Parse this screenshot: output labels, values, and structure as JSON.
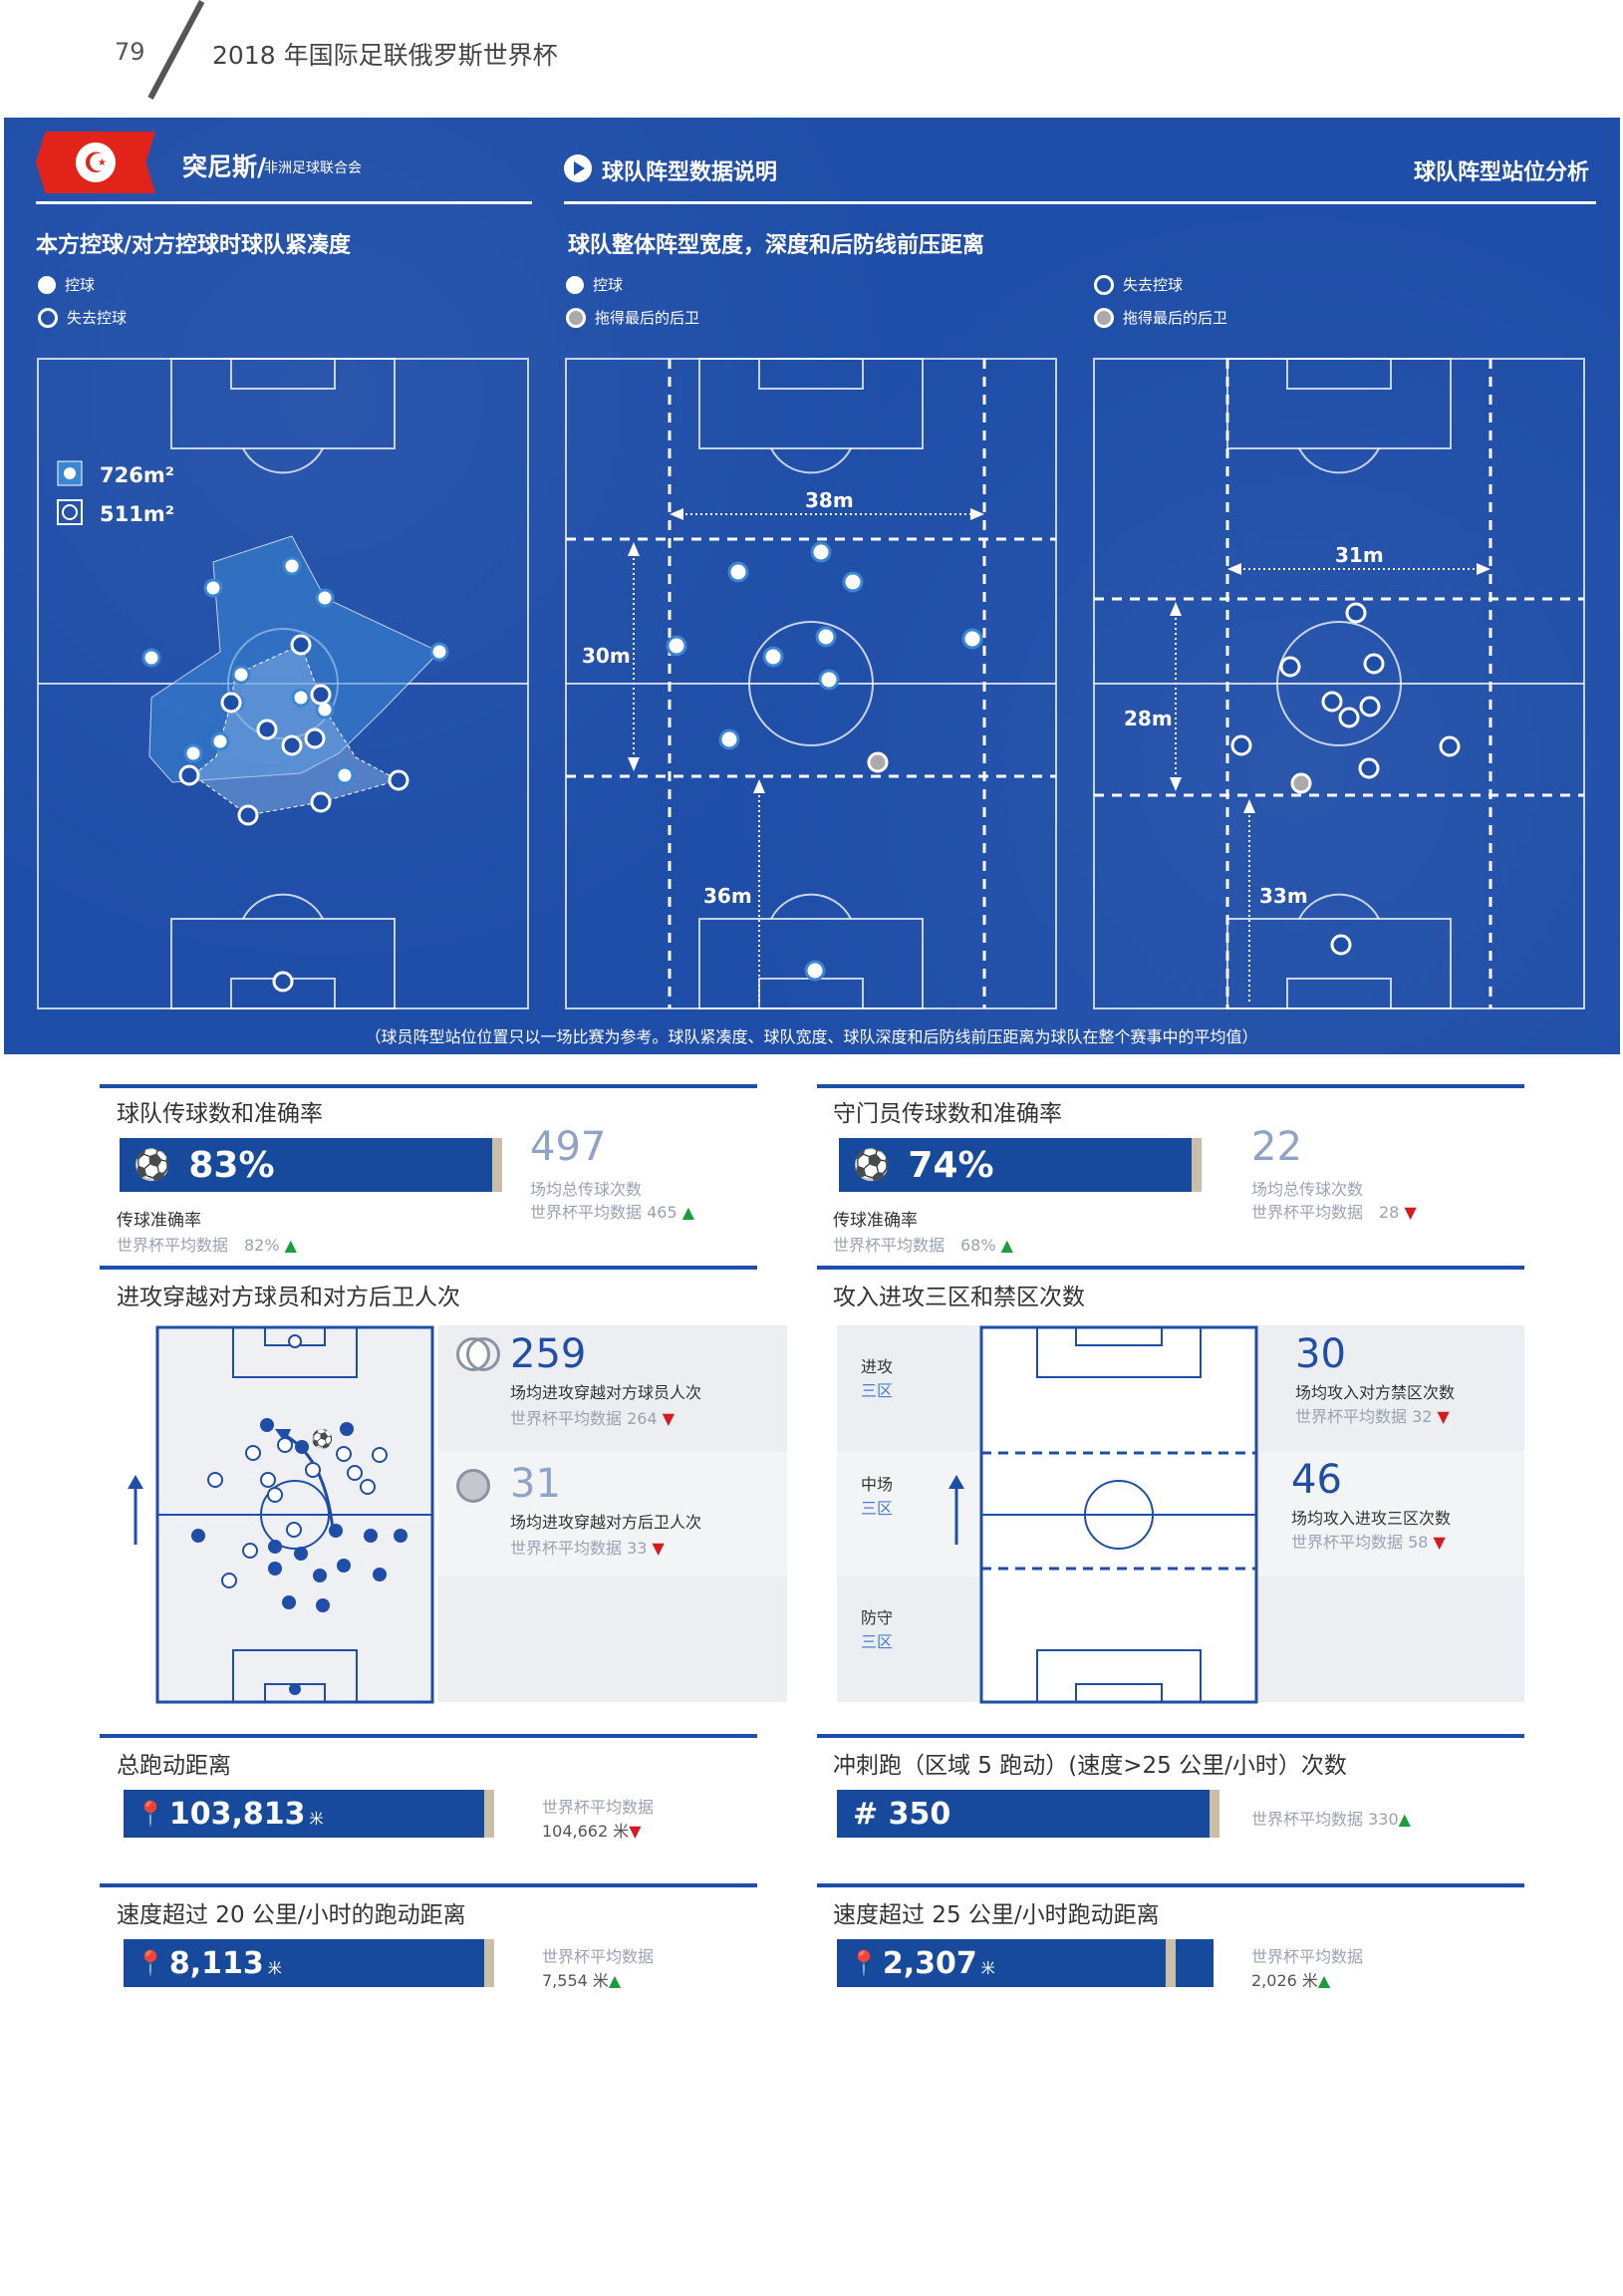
{
  "header": {
    "page_number": "79",
    "title": "2018 年国际足联俄罗斯世界杯"
  },
  "band": {
    "team_name": "突尼斯/",
    "confederation": "非洲足球联合会",
    "explain": "球队阵型数据说明",
    "right_title": "球队阵型站位分析",
    "left_section_title": "本方控球/对方控球时球队紧凑度",
    "middle_section_title": "球队整体阵型宽度，深度和后防线前压距离",
    "legend": {
      "possession": "控球",
      "lost_possession": "失去控球",
      "last_defender": "拖得最后的后卫"
    },
    "area_in_possession": "726m²",
    "area_out_possession": "511m²",
    "mid_width": "38m",
    "mid_depth": "30m",
    "mid_line_height": "36m",
    "right_width": "31m",
    "right_depth": "28m",
    "right_line_height": "33m",
    "footnote": "（球员阵型站位位置只以一场比赛为参考。球队紧凑度、球队宽度、球队深度和后防线前压距离为球队在整个赛事中的平均值）"
  },
  "team_passing": {
    "title": "球队传球数和准确率",
    "accuracy": "83%",
    "accuracy_label": "传球准确率",
    "accuracy_avg": "世界杯平均数据　82%",
    "total": "497",
    "total_label": "场均总传球次数",
    "total_avg": "世界杯平均数据 465",
    "accuracy_pct": 83,
    "trend_accuracy": "up",
    "trend_total": "up"
  },
  "gk_passing": {
    "title": "守门员传球数和准确率",
    "accuracy": "74%",
    "accuracy_label": "传球准确率",
    "accuracy_avg": "世界杯平均数据　68%",
    "total": "22",
    "total_label": "场均总传球次数",
    "total_avg": "世界杯平均数据　28",
    "accuracy_pct": 74
  },
  "line_breaks": {
    "title": "进攻穿越对方球员和对方后卫人次",
    "players_value": "259",
    "players_label": "场均进攻穿越对方球员人次",
    "players_avg": "世界杯平均数据 264",
    "defenders_value": "31",
    "defenders_label": "场均进攻穿越对方后卫人次",
    "defenders_avg": "世界杯平均数据 33"
  },
  "thirds": {
    "title": "攻入进攻三区和禁区次数",
    "attack_a": "进攻",
    "attack_b": "三区",
    "mid_a": "中场",
    "mid_b": "三区",
    "def_a": "防守",
    "def_b": "三区",
    "box_value": "30",
    "box_label": "场均攻入对方禁区次数",
    "box_avg": "世界杯平均数据 32",
    "third_value": "46",
    "third_label": "场均攻入进攻三区次数",
    "third_avg": "世界杯平均数据 58"
  },
  "distance": {
    "title": "总跑动距离",
    "value": "103,813",
    "unit": "米",
    "avg_label": "世界杯平均数据",
    "avg_value": "104,662 米"
  },
  "sprints": {
    "title": "冲刺跑（区域 5 跑动）(速度>25 公里/小时）次数",
    "value": "# 350",
    "avg": "世界杯平均数据 330"
  },
  "over20": {
    "title": "速度超过 20 公里/小时的跑动距离",
    "value": "8,113",
    "unit": "米",
    "avg_label": "世界杯平均数据",
    "avg_value": "7,554 米"
  },
  "over25": {
    "title": "速度超过 25 公里/小时跑动距离",
    "value": "2,307",
    "unit": "米",
    "avg_label": "世界杯平均数据",
    "avg_value": "2,026 米"
  }
}
